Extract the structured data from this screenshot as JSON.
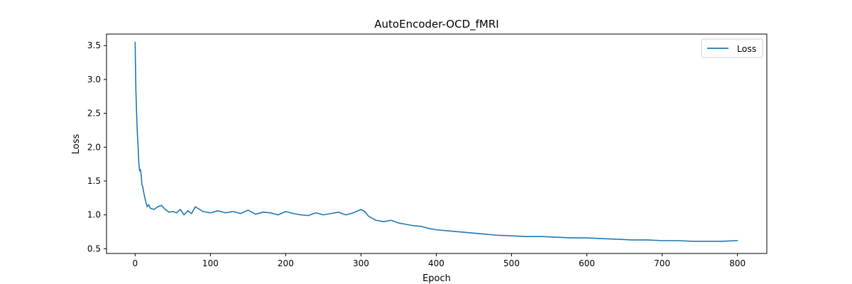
{
  "chart_data": {
    "type": "line",
    "title": "AutoEncoder-OCD_fMRI",
    "xlabel": "Epoch",
    "ylabel": "Loss",
    "xlim": [
      -38,
      839
    ],
    "ylim": [
      0.43,
      3.67
    ],
    "xticks": [
      0,
      100,
      200,
      300,
      400,
      500,
      600,
      700,
      800
    ],
    "yticks": [
      0.5,
      1.0,
      1.5,
      2.0,
      2.5,
      3.0,
      3.5
    ],
    "xtick_labels": [
      "0",
      "100",
      "200",
      "300",
      "400",
      "500",
      "600",
      "700",
      "800"
    ],
    "ytick_labels": [
      "0.5",
      "1.0",
      "1.5",
      "2.0",
      "2.5",
      "3.0",
      "3.5"
    ],
    "grid": false,
    "legend_position": "top-right",
    "series": [
      {
        "name": "Loss",
        "color": "#1f77b4",
        "x": [
          0,
          1,
          2,
          3,
          4,
          5,
          6,
          7,
          8,
          9,
          10,
          12,
          14,
          16,
          18,
          20,
          25,
          30,
          35,
          40,
          45,
          50,
          55,
          60,
          65,
          70,
          75,
          80,
          90,
          100,
          110,
          120,
          130,
          140,
          150,
          160,
          170,
          180,
          190,
          200,
          210,
          220,
          230,
          240,
          250,
          260,
          270,
          280,
          290,
          300,
          305,
          310,
          320,
          330,
          340,
          350,
          360,
          370,
          380,
          390,
          400,
          420,
          440,
          460,
          480,
          500,
          520,
          540,
          560,
          580,
          600,
          620,
          640,
          660,
          680,
          700,
          720,
          740,
          760,
          780,
          800
        ],
        "y": [
          3.55,
          2.85,
          2.5,
          2.2,
          2.0,
          1.75,
          1.65,
          1.67,
          1.6,
          1.45,
          1.42,
          1.3,
          1.2,
          1.12,
          1.15,
          1.1,
          1.08,
          1.12,
          1.14,
          1.08,
          1.04,
          1.05,
          1.03,
          1.08,
          1.0,
          1.06,
          1.02,
          1.12,
          1.05,
          1.03,
          1.06,
          1.03,
          1.05,
          1.02,
          1.07,
          1.01,
          1.04,
          1.03,
          1.0,
          1.05,
          1.02,
          1.0,
          0.99,
          1.03,
          1.0,
          1.02,
          1.04,
          1.0,
          1.03,
          1.08,
          1.05,
          0.98,
          0.92,
          0.9,
          0.92,
          0.88,
          0.86,
          0.84,
          0.83,
          0.8,
          0.78,
          0.76,
          0.74,
          0.72,
          0.7,
          0.69,
          0.68,
          0.68,
          0.67,
          0.66,
          0.66,
          0.65,
          0.64,
          0.63,
          0.63,
          0.62,
          0.62,
          0.61,
          0.61,
          0.61,
          0.62
        ]
      }
    ]
  }
}
